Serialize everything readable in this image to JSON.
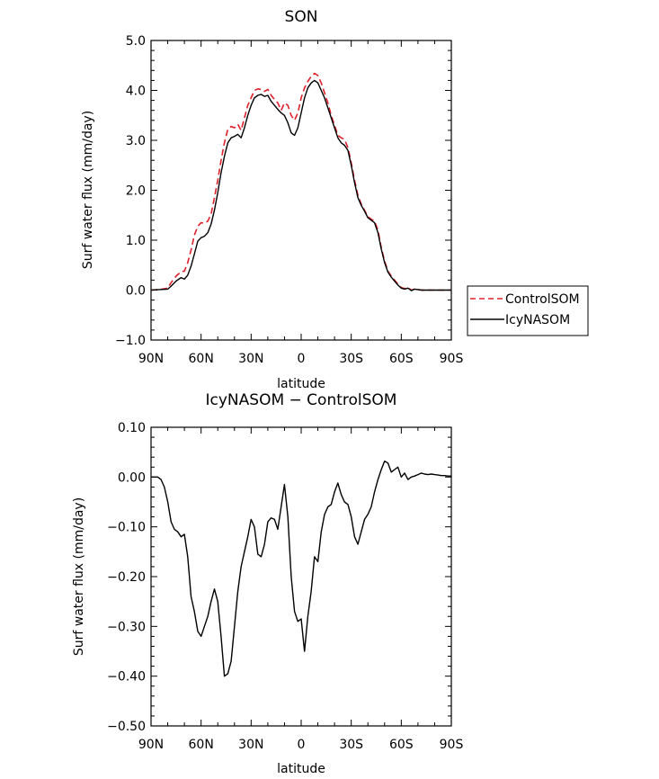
{
  "chart_data": [
    {
      "type": "line",
      "title": "SON",
      "xlabel": "latitude",
      "ylabel": "Surf water flux (mm/day)",
      "xlim": [
        90,
        -90
      ],
      "ylim": [
        -1.0,
        5.0
      ],
      "xticks": [
        90,
        60,
        30,
        0,
        -30,
        -60,
        -90
      ],
      "xtick_labels": [
        "90N",
        "60N",
        "30N",
        "0",
        "30S",
        "60S",
        "90S"
      ],
      "yticks": [
        -1,
        0,
        1,
        2,
        3,
        4,
        5
      ],
      "ytick_labels": [
        "−1.0",
        "0.0",
        "1.0",
        "2.0",
        "3.0",
        "4.0",
        "5.0"
      ],
      "legend_position": "right",
      "series": [
        {
          "name": "ControlSOM",
          "color": "#e0202a",
          "style": "dashed",
          "x": [
            90,
            85,
            80,
            78,
            75,
            72,
            70,
            68,
            66,
            64,
            62,
            60,
            58,
            56,
            54,
            52,
            50,
            48,
            46,
            44,
            42,
            40,
            38,
            36,
            34,
            32,
            30,
            28,
            26,
            24,
            22,
            20,
            18,
            16,
            14,
            12,
            10,
            8,
            6,
            4,
            2,
            0,
            -2,
            -4,
            -6,
            -8,
            -10,
            -12,
            -14,
            -16,
            -18,
            -20,
            -22,
            -24,
            -26,
            -28,
            -30,
            -32,
            -34,
            -36,
            -38,
            -40,
            -42,
            -44,
            -46,
            -48,
            -50,
            -52,
            -54,
            -56,
            -58,
            -60,
            -62,
            -64,
            -66,
            -68,
            -70,
            -72,
            -74,
            -76,
            -78,
            -80,
            -82,
            -84,
            -86,
            -88,
            -90
          ],
          "y": [
            0.0,
            0.01,
            0.04,
            0.15,
            0.28,
            0.37,
            0.38,
            0.55,
            0.8,
            1.1,
            1.28,
            1.35,
            1.34,
            1.38,
            1.52,
            1.85,
            2.2,
            2.6,
            2.95,
            3.22,
            3.28,
            3.25,
            3.32,
            3.2,
            3.45,
            3.7,
            3.85,
            4.0,
            4.03,
            4.02,
            3.98,
            4.02,
            3.9,
            3.82,
            3.75,
            3.6,
            3.75,
            3.7,
            3.5,
            3.4,
            3.55,
            3.85,
            4.05,
            4.18,
            4.28,
            4.34,
            4.3,
            4.15,
            3.95,
            3.75,
            3.5,
            3.3,
            3.1,
            3.05,
            3.02,
            2.85,
            2.55,
            2.2,
            1.9,
            1.72,
            1.6,
            1.47,
            1.42,
            1.38,
            1.2,
            0.85,
            0.58,
            0.38,
            0.28,
            0.2,
            0.12,
            0.05,
            0.03,
            0.05,
            0.0,
            0.02,
            0.01,
            0.0,
            0.0,
            0.0,
            0.0,
            0.0,
            0.0,
            0.0,
            0.0,
            0.0,
            0.0
          ]
        },
        {
          "name": "IcyNASOM",
          "color": "#000000",
          "style": "solid",
          "x": [
            90,
            85,
            80,
            78,
            75,
            72,
            70,
            68,
            66,
            64,
            62,
            60,
            58,
            56,
            54,
            52,
            50,
            48,
            46,
            44,
            42,
            40,
            38,
            36,
            34,
            32,
            30,
            28,
            26,
            24,
            22,
            20,
            18,
            16,
            14,
            12,
            10,
            8,
            6,
            4,
            2,
            0,
            -2,
            -4,
            -6,
            -8,
            -10,
            -12,
            -14,
            -16,
            -18,
            -20,
            -22,
            -24,
            -26,
            -28,
            -30,
            -32,
            -34,
            -36,
            -38,
            -40,
            -42,
            -44,
            -46,
            -48,
            -50,
            -52,
            -54,
            -56,
            -58,
            -60,
            -62,
            -64,
            -66,
            -68,
            -70,
            -72,
            -74,
            -76,
            -78,
            -80,
            -82,
            -84,
            -86,
            -88,
            -90
          ],
          "y": [
            0.0,
            0.01,
            0.02,
            0.08,
            0.18,
            0.25,
            0.22,
            0.3,
            0.48,
            0.72,
            0.98,
            1.05,
            1.08,
            1.15,
            1.32,
            1.6,
            1.95,
            2.35,
            2.68,
            2.95,
            3.05,
            3.08,
            3.12,
            3.05,
            3.25,
            3.5,
            3.7,
            3.85,
            3.9,
            3.92,
            3.88,
            3.9,
            3.78,
            3.7,
            3.62,
            3.55,
            3.5,
            3.35,
            3.15,
            3.1,
            3.25,
            3.55,
            3.85,
            4.05,
            4.15,
            4.2,
            4.15,
            4.0,
            3.85,
            3.65,
            3.45,
            3.25,
            3.05,
            2.95,
            2.9,
            2.8,
            2.5,
            2.15,
            1.85,
            1.7,
            1.58,
            1.45,
            1.4,
            1.35,
            1.15,
            0.82,
            0.55,
            0.36,
            0.26,
            0.18,
            0.1,
            0.04,
            0.02,
            0.04,
            -0.01,
            0.02,
            0.01,
            0.0,
            0.0,
            0.0,
            0.0,
            0.0,
            0.0,
            0.0,
            0.0,
            0.0,
            0.0
          ]
        }
      ]
    },
    {
      "type": "line",
      "title": "IcyNASOM − ControlSOM",
      "xlabel": "latitude",
      "ylabel": "Surf water flux (mm/day)",
      "xlim": [
        90,
        -90
      ],
      "ylim": [
        -0.5,
        0.1
      ],
      "xticks": [
        90,
        60,
        30,
        0,
        -30,
        -60,
        -90
      ],
      "xtick_labels": [
        "90N",
        "60N",
        "30N",
        "0",
        "30S",
        "60S",
        "90S"
      ],
      "yticks": [
        -0.5,
        -0.4,
        -0.3,
        -0.2,
        -0.1,
        0.0,
        0.1
      ],
      "ytick_labels": [
        "−0.50",
        "−0.40",
        "−0.30",
        "−0.20",
        "−0.10",
        "0.00",
        "0.10"
      ],
      "series": [
        {
          "color": "#000000",
          "style": "solid",
          "x": [
            90,
            86,
            84,
            82,
            80,
            78,
            76,
            74,
            72,
            70,
            68,
            66,
            64,
            62,
            60,
            58,
            56,
            54,
            52,
            50,
            48,
            46,
            44,
            42,
            40,
            38,
            36,
            34,
            32,
            30,
            28,
            26,
            24,
            22,
            20,
            18,
            16,
            14,
            12,
            10,
            8,
            6,
            4,
            2,
            0,
            -2,
            -4,
            -6,
            -8,
            -10,
            -12,
            -14,
            -16,
            -18,
            -20,
            -22,
            -24,
            -26,
            -28,
            -30,
            -32,
            -34,
            -36,
            -38,
            -40,
            -42,
            -44,
            -46,
            -48,
            -50,
            -52,
            -54,
            -56,
            -58,
            -60,
            -62,
            -64,
            -66,
            -68,
            -70,
            -72,
            -74,
            -76,
            -78,
            -80,
            -82,
            -84,
            -86,
            -88,
            -90
          ],
          "y": [
            0.0,
            0.0,
            -0.005,
            -0.02,
            -0.05,
            -0.09,
            -0.105,
            -0.11,
            -0.12,
            -0.115,
            -0.16,
            -0.24,
            -0.27,
            -0.31,
            -0.32,
            -0.3,
            -0.28,
            -0.25,
            -0.225,
            -0.25,
            -0.32,
            -0.4,
            -0.395,
            -0.37,
            -0.3,
            -0.23,
            -0.18,
            -0.15,
            -0.12,
            -0.085,
            -0.1,
            -0.155,
            -0.16,
            -0.135,
            -0.09,
            -0.082,
            -0.085,
            -0.105,
            -0.06,
            -0.015,
            -0.08,
            -0.2,
            -0.27,
            -0.29,
            -0.285,
            -0.35,
            -0.28,
            -0.23,
            -0.16,
            -0.17,
            -0.11,
            -0.075,
            -0.06,
            -0.055,
            -0.03,
            -0.012,
            -0.035,
            -0.05,
            -0.055,
            -0.08,
            -0.12,
            -0.135,
            -0.11,
            -0.085,
            -0.075,
            -0.06,
            -0.03,
            -0.005,
            0.015,
            0.032,
            0.028,
            0.01,
            0.015,
            0.02,
            0.0,
            0.008,
            -0.005,
            0.0,
            0.002,
            0.005,
            0.008,
            0.006,
            0.005,
            0.006,
            0.005,
            0.004,
            0.003,
            0.003,
            0.002,
            0.002
          ]
        }
      ]
    }
  ]
}
